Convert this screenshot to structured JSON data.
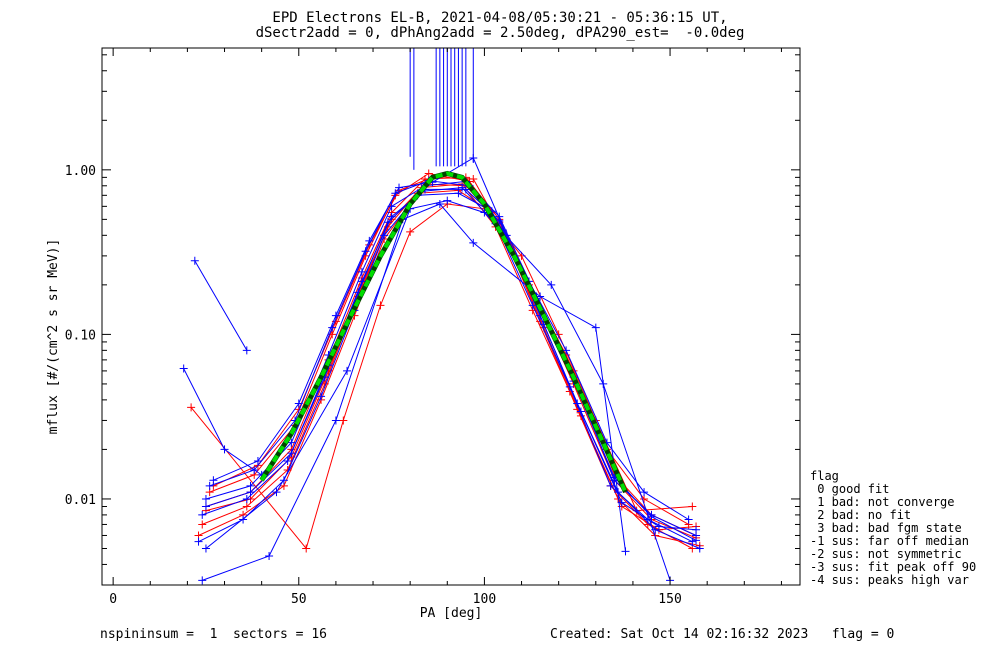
{
  "header": {
    "title_line1": "EPD Electrons EL-B, 2021-04-08/05:30:21 - 05:36:15 UT,",
    "title_line2": "dSectr2add = 0, dPhAng2add = 2.50deg, dPA290_est=  -0.0deg"
  },
  "footer": {
    "left": "nspininsum =  1  sectors = 16",
    "right": "Created: Sat Oct 14 02:16:32 2023   flag = 0"
  },
  "legend": {
    "title": "flag",
    "items": [
      " 0 good fit",
      " 1 bad: not converge",
      " 2 bad: no fit",
      " 3 bad: bad fgm state",
      "-1 sus: far off median",
      "-2 sus: not symmetric",
      "-3 sus: fit peak off 90",
      "-4 sus: peaks high var"
    ]
  },
  "chart_data": {
    "type": "line",
    "xlabel": "PA [deg]",
    "ylabel": "mflux [#/(cm^2 s sr MeV)]",
    "xlim": [
      -3,
      185
    ],
    "ylim": [
      0.003,
      5.5
    ],
    "yscale": "log",
    "x_ticks": [
      0,
      50,
      100,
      150
    ],
    "x_tick_labels": [
      "0",
      "50",
      "100",
      "150"
    ],
    "y_ticks": [
      0.01,
      0.1,
      1.0
    ],
    "y_tick_labels": [
      "0.01",
      "0.10",
      "1.00"
    ],
    "colors": {
      "red": "#ff0000",
      "blue": "#0000ff",
      "fit": "#00dd00",
      "fit_dark": "#004400"
    },
    "series": [
      {
        "color": "red",
        "x": [
          25,
          37,
          48,
          58,
          67,
          75,
          84,
          95,
          104,
          114,
          124,
          135,
          145,
          157
        ],
        "y": [
          0.009,
          0.011,
          0.02,
          0.07,
          0.22,
          0.55,
          0.88,
          0.9,
          0.5,
          0.17,
          0.06,
          0.014,
          0.008,
          0.006
        ]
      },
      {
        "color": "red",
        "x": [
          24,
          36,
          47,
          57,
          66,
          74,
          83,
          94,
          103,
          113,
          123,
          134,
          144,
          156
        ],
        "y": [
          0.007,
          0.009,
          0.015,
          0.05,
          0.17,
          0.45,
          0.78,
          0.82,
          0.45,
          0.14,
          0.045,
          0.012,
          0.007,
          0.005
        ]
      },
      {
        "color": "red",
        "x": [
          26,
          38,
          49,
          59,
          68,
          76,
          85,
          96,
          105,
          115,
          125,
          136,
          146,
          158
        ],
        "y": [
          0.011,
          0.014,
          0.028,
          0.1,
          0.3,
          0.7,
          0.95,
          0.85,
          0.42,
          0.12,
          0.035,
          0.01,
          0.006,
          0.0052
        ]
      },
      {
        "color": "red",
        "x": [
          23,
          35,
          46,
          56,
          65,
          73,
          82,
          93,
          102,
          112,
          122,
          133,
          143,
          155
        ],
        "y": [
          0.006,
          0.008,
          0.012,
          0.04,
          0.13,
          0.38,
          0.72,
          0.75,
          0.55,
          0.2,
          0.075,
          0.02,
          0.01,
          0.007
        ]
      },
      {
        "color": "red",
        "x": [
          25,
          37,
          48,
          58,
          67,
          75,
          84,
          95,
          104,
          114,
          124,
          135,
          145,
          157
        ],
        "y": [
          0.0085,
          0.01,
          0.018,
          0.06,
          0.2,
          0.5,
          0.82,
          0.8,
          0.48,
          0.16,
          0.05,
          0.013,
          0.0075,
          0.0058
        ]
      },
      {
        "color": "red",
        "x": [
          21,
          52,
          62,
          72,
          80,
          90,
          100,
          110,
          120,
          130,
          141,
          156
        ],
        "y": [
          0.036,
          0.005,
          0.03,
          0.15,
          0.42,
          0.62,
          0.58,
          0.3,
          0.1,
          0.03,
          0.0085,
          0.009
        ]
      },
      {
        "color": "red",
        "x": [
          27,
          39,
          50,
          60,
          69,
          77,
          86,
          97,
          106,
          116,
          126,
          137,
          147,
          157
        ],
        "y": [
          0.012,
          0.016,
          0.035,
          0.12,
          0.35,
          0.75,
          0.9,
          0.88,
          0.38,
          0.11,
          0.032,
          0.009,
          0.0065,
          0.0068
        ]
      },
      {
        "color": "blue",
        "x": [
          22,
          36
        ],
        "y": [
          0.28,
          0.08
        ]
      },
      {
        "color": "blue",
        "x": [
          19,
          30,
          40
        ],
        "y": [
          0.062,
          0.02,
          0.014
        ]
      },
      {
        "color": "blue",
        "x": [
          25,
          37,
          48,
          58,
          67,
          75,
          84,
          95,
          104,
          114,
          124,
          135,
          145,
          157
        ],
        "y": [
          0.01,
          0.012,
          0.022,
          0.075,
          0.24,
          0.6,
          0.8,
          0.85,
          0.52,
          0.17,
          0.055,
          0.013,
          0.008,
          0.006
        ]
      },
      {
        "color": "blue",
        "x": [
          24,
          36,
          47,
          57,
          66,
          74,
          83,
          94,
          103,
          113,
          123,
          134,
          144,
          156
        ],
        "y": [
          0.008,
          0.01,
          0.017,
          0.055,
          0.18,
          0.48,
          0.74,
          0.78,
          0.47,
          0.15,
          0.048,
          0.012,
          0.0075,
          0.0055
        ]
      },
      {
        "color": "blue",
        "x": [
          26,
          38,
          49,
          59,
          68,
          76,
          85,
          96,
          105,
          115,
          125,
          136,
          146,
          158
        ],
        "y": [
          0.012,
          0.015,
          0.03,
          0.11,
          0.32,
          0.72,
          0.86,
          0.8,
          0.43,
          0.13,
          0.038,
          0.011,
          0.0065,
          0.005
        ]
      },
      {
        "color": "blue",
        "x": [
          23,
          35,
          46,
          56,
          65,
          73,
          82,
          93,
          102,
          112,
          122,
          133,
          143,
          155
        ],
        "y": [
          0.0055,
          0.0075,
          0.013,
          0.042,
          0.14,
          0.4,
          0.7,
          0.72,
          0.56,
          0.21,
          0.08,
          0.022,
          0.011,
          0.0075
        ]
      },
      {
        "color": "blue",
        "x": [
          25,
          37,
          48,
          58,
          67,
          75,
          84,
          95,
          104,
          114,
          124,
          135,
          145,
          157
        ],
        "y": [
          0.009,
          0.011,
          0.019,
          0.065,
          0.21,
          0.52,
          0.76,
          0.76,
          0.49,
          0.165,
          0.052,
          0.0135,
          0.0078,
          0.0056
        ]
      },
      {
        "color": "blue",
        "x": [
          27,
          39,
          50,
          60,
          69,
          77,
          86,
          97,
          106,
          116,
          126,
          137,
          147,
          157
        ],
        "y": [
          0.013,
          0.017,
          0.038,
          0.13,
          0.37,
          0.78,
          0.84,
          1.18,
          0.4,
          0.115,
          0.034,
          0.0095,
          0.0068,
          0.0065
        ]
      },
      {
        "color": "blue",
        "x": [
          24,
          42,
          60,
          78,
          88,
          97,
          115,
          130,
          138
        ],
        "y": [
          0.0032,
          0.0045,
          0.03,
          0.5,
          0.62,
          0.36,
          0.17,
          0.11,
          0.0048
        ]
      },
      {
        "color": "blue",
        "x": [
          25,
          44,
          63,
          80,
          90,
          100,
          118,
          132,
          150
        ],
        "y": [
          0.005,
          0.011,
          0.06,
          0.58,
          0.65,
          0.55,
          0.2,
          0.05,
          0.0032
        ]
      }
    ],
    "spikes": {
      "color": "blue",
      "x": [
        80,
        81,
        87,
        88,
        89,
        90,
        91,
        92,
        93,
        94,
        95,
        97
      ],
      "y_low": [
        1.2,
        1.0,
        1.05,
        1.05,
        1.05,
        1.05,
        1.05,
        1.05,
        1.05,
        1.05,
        1.05,
        1.1
      ]
    },
    "fit": {
      "color": "fit",
      "x": [
        40,
        48,
        56,
        64,
        72,
        80,
        86,
        90,
        94,
        100,
        108,
        116,
        124,
        132,
        138
      ],
      "y": [
        0.013,
        0.025,
        0.055,
        0.13,
        0.3,
        0.62,
        0.9,
        0.95,
        0.9,
        0.62,
        0.3,
        0.13,
        0.055,
        0.022,
        0.011
      ]
    }
  }
}
